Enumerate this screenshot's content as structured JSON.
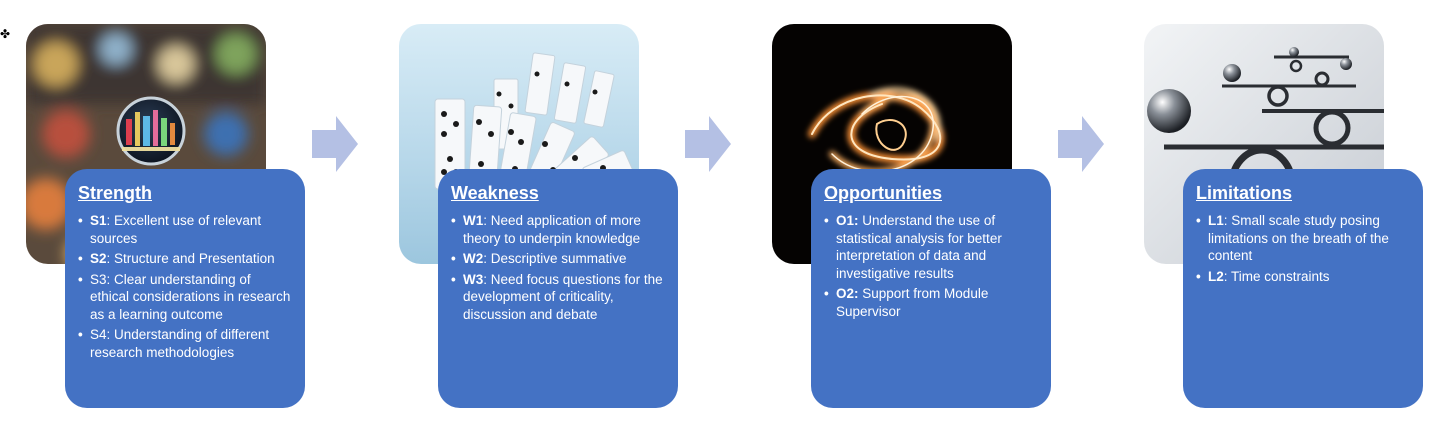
{
  "corner_mark": "✤",
  "columns": [
    {
      "id": "strength",
      "title": "Strength",
      "image_icon": "city-lights-lens-icon",
      "items": [
        {
          "code": "S1",
          "text": ": Excellent use of relevant sources"
        },
        {
          "code": "S2",
          "text": ": Structure and Presentation"
        },
        {
          "code": "",
          "text": "S3: Clear understanding of ethical considerations in research as a learning outcome"
        },
        {
          "code": "",
          "text": "S4: Understanding of different research methodologies"
        }
      ]
    },
    {
      "id": "weakness",
      "title": "Weakness",
      "image_icon": "falling-dominoes-icon",
      "items": [
        {
          "code": "W1",
          "text": ": Need application of more theory to underpin knowledge"
        },
        {
          "code": "W2",
          "text": ": Descriptive summative"
        },
        {
          "code": "W3",
          "text": ": Need focus questions for the development of criticality, discussion and debate"
        }
      ]
    },
    {
      "id": "opportunities",
      "title": "Opportunities",
      "image_icon": "light-swirl-icon",
      "items": [
        {
          "code": "O1:",
          "text": " Understand the use of statistical analysis for better interpretation of data and investigative results"
        },
        {
          "code": "O2:",
          "text": " Support from Module Supervisor"
        }
      ]
    },
    {
      "id": "limitations",
      "title": "Limitations",
      "image_icon": "balance-spheres-icon",
      "items": [
        {
          "code": "L1",
          "text": ": Small scale study posing limitations on the breath of the content"
        },
        {
          "code": "L2",
          "text": ": Time constraints"
        }
      ]
    }
  ],
  "colors": {
    "card": "#4472c4",
    "arrow": "#b4c0e4",
    "text": "#ffffff"
  }
}
